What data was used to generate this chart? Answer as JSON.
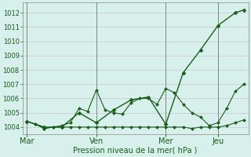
{
  "background_color": "#d8f0ec",
  "grid_color": "#c8b8cc",
  "line_color": "#1a5c1a",
  "marker_color": "#1a5c1a",
  "ylim": [
    1003.5,
    1012.7
  ],
  "yticks": [
    1004,
    1005,
    1006,
    1007,
    1008,
    1009,
    1010,
    1011,
    1012
  ],
  "xlabel": "Pression niveau de la mer( hPa )",
  "xlabel_color": "#1a5c1a",
  "tick_color": "#1a5c1a",
  "day_labels": [
    "Mar",
    "Ven",
    "Mer",
    "Jeu"
  ],
  "day_positions": [
    0,
    8,
    16,
    22
  ],
  "vline_positions": [
    0,
    8,
    16,
    22
  ],
  "xlim": [
    -0.5,
    25.5
  ],
  "series": [
    {
      "x": [
        0,
        1,
        2,
        3,
        4,
        5,
        6,
        7,
        8,
        9,
        10,
        11,
        12,
        13,
        14,
        15,
        16,
        17,
        18,
        19,
        20,
        21,
        22,
        23,
        24,
        25
      ],
      "y": [
        1004.4,
        1004.2,
        1003.9,
        1004.0,
        1004.0,
        1004.0,
        1004.0,
        1004.0,
        1004.0,
        1004.0,
        1004.0,
        1004.0,
        1004.0,
        1004.0,
        1004.0,
        1004.0,
        1004.0,
        1004.0,
        1004.0,
        1003.9,
        1004.0,
        1004.0,
        1004.0,
        1004.1,
        1004.3,
        1004.5
      ],
      "marker": "D",
      "markersize": 2.0,
      "linewidth": 0.8
    },
    {
      "x": [
        0,
        1,
        2,
        3,
        4,
        5,
        6,
        7,
        8,
        9,
        10,
        11,
        12,
        13,
        14,
        15,
        16,
        17,
        18,
        19,
        20,
        21,
        22,
        23,
        24,
        25
      ],
      "y": [
        1004.4,
        1004.2,
        1003.9,
        1004.0,
        1004.1,
        1004.3,
        1005.3,
        1005.1,
        1006.6,
        1005.2,
        1005.0,
        1004.9,
        1005.7,
        1006.0,
        1006.0,
        1005.6,
        1006.7,
        1006.4,
        1005.6,
        1005.0,
        1004.7,
        1004.1,
        1004.3,
        1005.3,
        1006.5,
        1007.0
      ],
      "marker": "D",
      "markersize": 2.0,
      "linewidth": 0.8
    },
    {
      "x": [
        0,
        2,
        4,
        6,
        8,
        10,
        12,
        14,
        16,
        18,
        20,
        22,
        24,
        25
      ],
      "y": [
        1004.4,
        1004.0,
        1004.0,
        1005.0,
        1004.3,
        1005.2,
        1005.9,
        1006.1,
        1004.2,
        1007.8,
        1009.4,
        1011.1,
        1012.0,
        1012.2
      ],
      "marker": "D",
      "markersize": 2.5,
      "linewidth": 1.0
    }
  ]
}
